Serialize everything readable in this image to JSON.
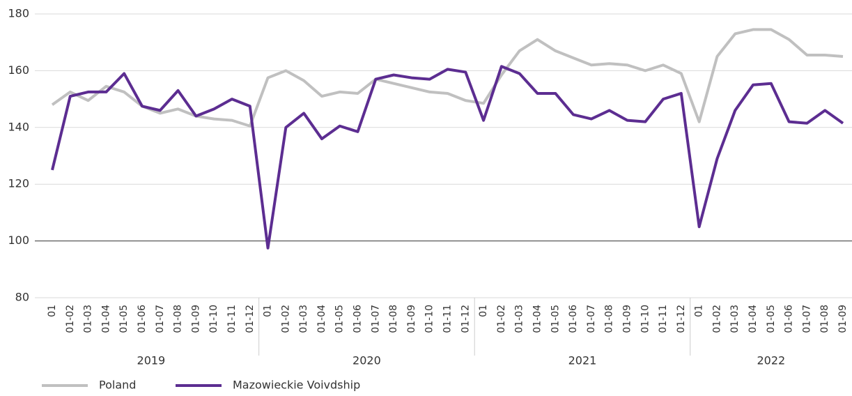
{
  "chart_data": {
    "type": "line",
    "groups": [
      {
        "label": "2019",
        "categories": [
          "01",
          "01-02",
          "01-03",
          "01-04",
          "01-05",
          "01-06",
          "01-07",
          "01-08",
          "01-09",
          "01-10",
          "01-11",
          "01-12"
        ]
      },
      {
        "label": "2020",
        "categories": [
          "01",
          "01-02",
          "01-03",
          "01-04",
          "01-05",
          "01-06",
          "01-07",
          "01-08",
          "01-09",
          "01-10",
          "01-11",
          "01-12"
        ]
      },
      {
        "label": "2021",
        "categories": [
          "01",
          "01-02",
          "01-03",
          "01-04",
          "01-05",
          "01-06",
          "01-07",
          "01-08",
          "01-09",
          "01-10",
          "01-11",
          "01-12"
        ]
      },
      {
        "label": "2022",
        "categories": [
          "01",
          "01-02",
          "01-03",
          "01-04",
          "01-05",
          "01-06",
          "01-07",
          "01-08",
          "01-09"
        ]
      }
    ],
    "series": [
      {
        "name": "Poland",
        "color": "#c0c0c0",
        "values": [
          148,
          152.5,
          149.5,
          154.5,
          152.5,
          147.5,
          145,
          146.5,
          144,
          143,
          142.5,
          140.5,
          157.5,
          160,
          156.5,
          151,
          152.5,
          152,
          157,
          155.5,
          154,
          152.5,
          152,
          149.5,
          148.5,
          158.5,
          167,
          171,
          167,
          164.5,
          162,
          162.5,
          162,
          160,
          162,
          159,
          142,
          165,
          173,
          174.5,
          174.5,
          171,
          165.5,
          165.5,
          165
        ]
      },
      {
        "name": "Mazowieckie Voivdship",
        "color": "#5c2d91",
        "values": [
          125,
          151,
          152.5,
          152.5,
          159,
          147.5,
          146,
          153,
          144,
          146.5,
          150,
          147.5,
          97.5,
          140,
          145,
          136,
          140.5,
          138.5,
          157,
          158.5,
          157.5,
          157,
          160.5,
          159.5,
          142.5,
          161.5,
          159,
          152,
          152,
          144.5,
          143,
          146,
          142.5,
          142,
          150,
          152,
          105,
          129,
          146,
          155,
          155.5,
          142,
          141.5,
          146,
          141.5
        ]
      }
    ],
    "ylim": [
      80,
      180
    ],
    "yticks": [
      80,
      100,
      120,
      140,
      160,
      180
    ],
    "baseline": 100,
    "grid": true,
    "legend": "bottom-left"
  }
}
